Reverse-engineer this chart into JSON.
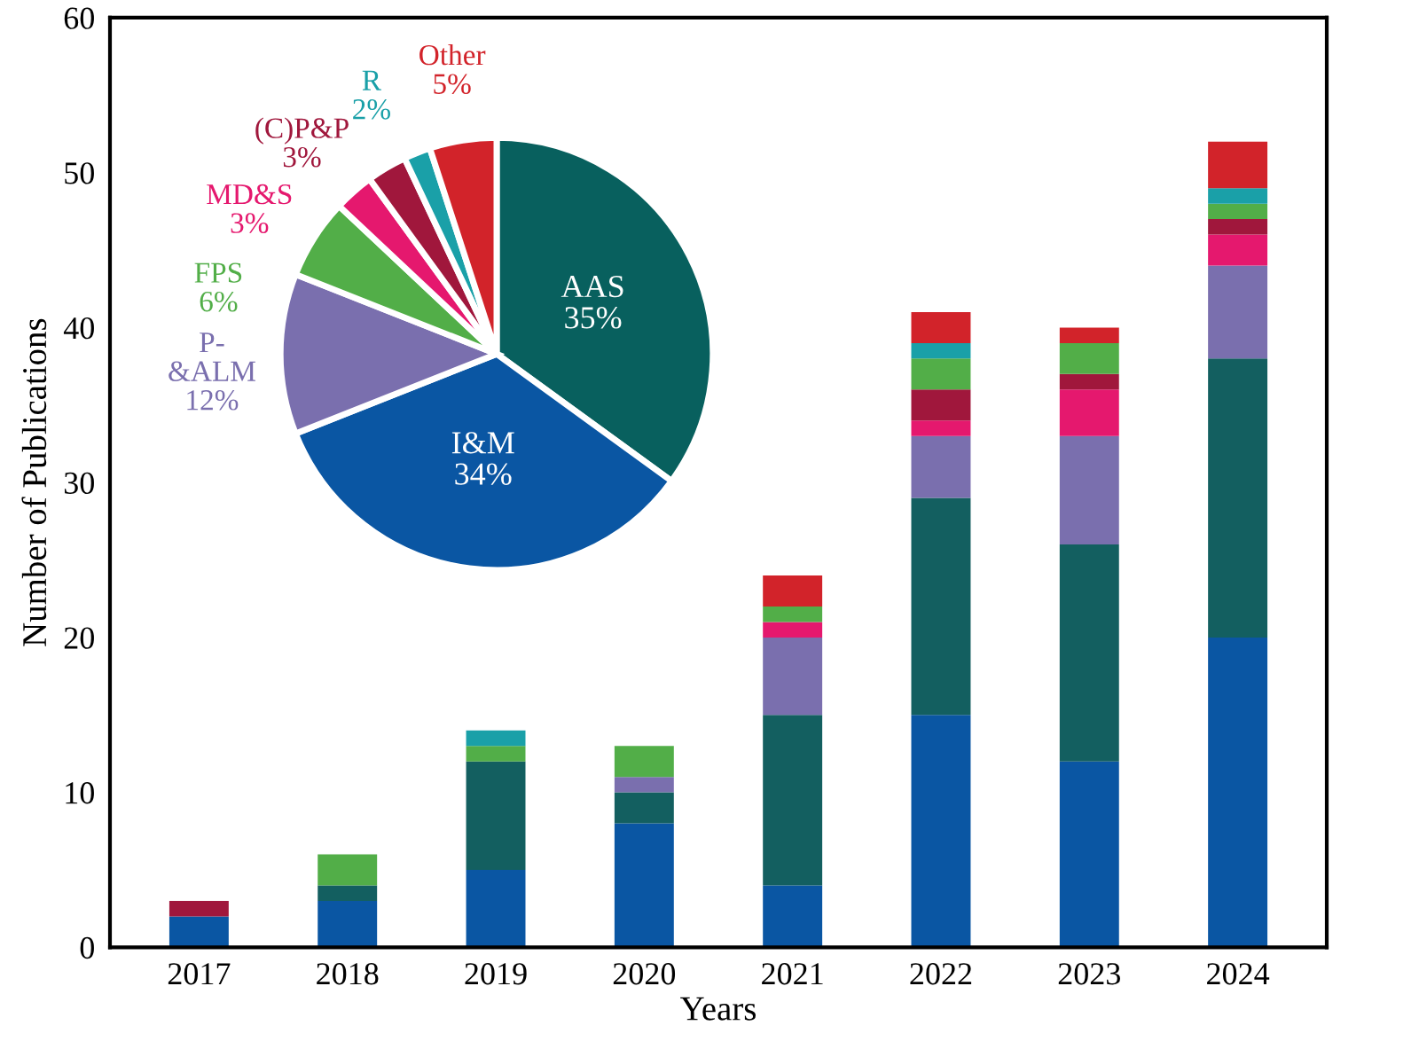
{
  "chart_data": [
    {
      "type": "bar",
      "stacked": true,
      "xlabel": "Years",
      "ylabel": "Number of Publications",
      "categories": [
        "2017",
        "2018",
        "2019",
        "2020",
        "2021",
        "2022",
        "2023",
        "2024"
      ],
      "ylim": [
        0,
        60
      ],
      "yticks": [
        0,
        10,
        20,
        30,
        40,
        50,
        60
      ],
      "grid": false,
      "series": [
        {
          "color": "#0a56a3",
          "values": [
            2,
            3,
            5,
            8,
            4,
            15,
            12,
            20
          ]
        },
        {
          "color": "#135f60",
          "values": [
            null,
            1,
            7,
            2,
            11,
            14,
            14,
            18
          ]
        },
        {
          "color": "#7a6fae",
          "values": [
            null,
            null,
            null,
            1,
            5,
            4,
            7,
            6
          ]
        },
        {
          "color": "#e5186e",
          "values": [
            null,
            null,
            null,
            null,
            1,
            1,
            3,
            2
          ]
        },
        {
          "color": "#a0173c",
          "values": [
            1,
            null,
            null,
            null,
            null,
            2,
            1,
            1
          ]
        },
        {
          "color": "#52ae48",
          "values": [
            null,
            2,
            1,
            2,
            1,
            2,
            2,
            1
          ]
        },
        {
          "color": "#1aa0a8",
          "values": [
            null,
            null,
            1,
            null,
            null,
            1,
            null,
            1
          ]
        },
        {
          "color": "#d2232a",
          "values": [
            null,
            null,
            null,
            null,
            2,
            2,
            1,
            3
          ]
        }
      ]
    },
    {
      "type": "pie",
      "categories": [
        "AAS",
        "I&M",
        "P-\n&ALM",
        "FPS",
        "MD&S",
        "(C)P&P",
        "R",
        "Other"
      ],
      "values": [
        35,
        34,
        12,
        6,
        3,
        3,
        2,
        5
      ],
      "value_labels": [
        "35%",
        "34%",
        "12%",
        "6%",
        "3%",
        "3%",
        "2%",
        "5%"
      ],
      "colors": [
        "#08605e",
        "#0a56a3",
        "#7a6fae",
        "#52ae48",
        "#e5186e",
        "#a0173c",
        "#1aa0a8",
        "#d2232a"
      ]
    }
  ]
}
